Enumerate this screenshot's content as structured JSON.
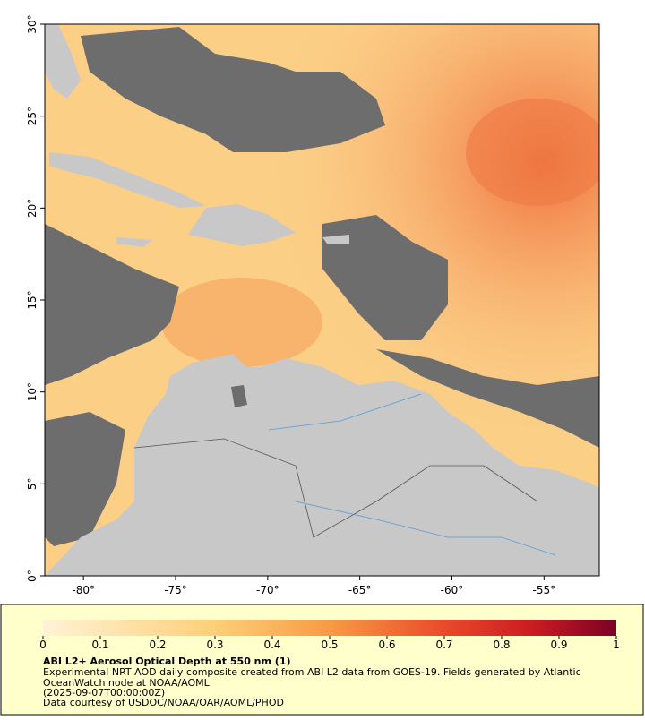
{
  "map": {
    "xlim": [
      -82.1,
      -52.0
    ],
    "ylim": [
      0,
      30
    ],
    "xticks": [
      {
        "value": -80,
        "label": "-80°"
      },
      {
        "value": -75,
        "label": "-75°"
      },
      {
        "value": -70,
        "label": "-70°"
      },
      {
        "value": -65,
        "label": "-65°"
      },
      {
        "value": -60,
        "label": "-60°"
      },
      {
        "value": -55,
        "label": "-55°"
      }
    ],
    "yticks": [
      {
        "value": 0,
        "label": "0°"
      },
      {
        "value": 5,
        "label": "5°"
      },
      {
        "value": 10,
        "label": "10°"
      },
      {
        "value": 15,
        "label": "15°"
      },
      {
        "value": 20,
        "label": "20°"
      },
      {
        "value": 25,
        "label": "25°"
      },
      {
        "value": 30,
        "label": "30°"
      }
    ]
  },
  "colorbar": {
    "lim": [
      0,
      1
    ],
    "ticks": [
      0,
      0.1,
      0.2,
      0.3,
      0.4,
      0.5,
      0.6,
      0.7,
      0.8,
      0.9,
      1
    ]
  },
  "legend": {
    "title": "ABI L2+ Aerosol Optical Depth at 550 nm (1)",
    "lines": [
      "Experimental NRT AOD daily composite created from ABI L2 data from GOES-19. Fields generated by Atlantic",
      "OceanWatch node at NOAA/AOML",
      "(2025-09-07T00:00:00Z)",
      "Data courtesy of USDOC/NOAA/OAR/AOML/PHOD"
    ]
  }
}
